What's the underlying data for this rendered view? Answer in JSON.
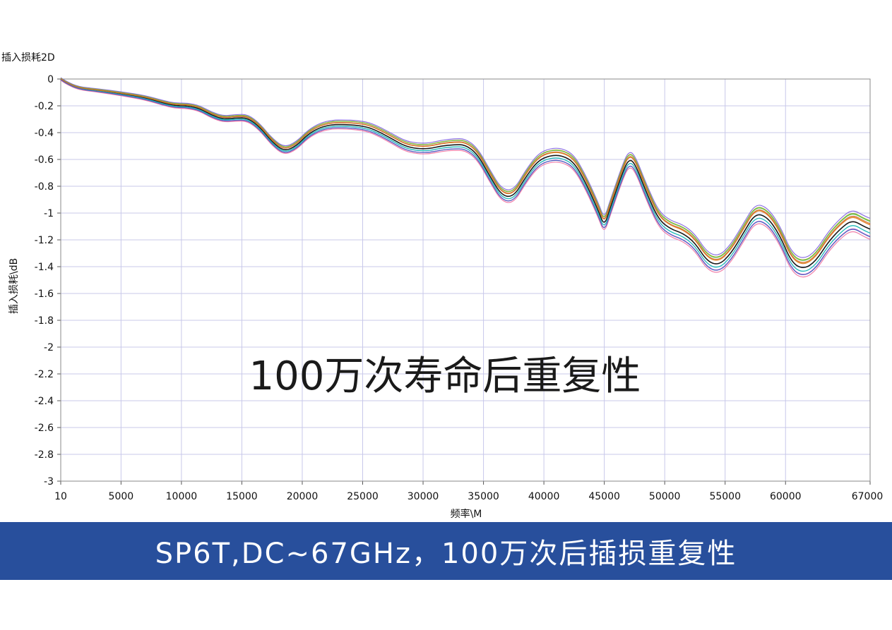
{
  "banner": {
    "text": "SP6T,DC~67GHz，100万次后插损重复性",
    "bg_color": "#284f9c"
  },
  "chart_data": {
    "type": "line",
    "title": "插入损耗2D",
    "overlay_text": "100万次寿命后重复性",
    "xlabel": "频率\\M",
    "ylabel": "插入损耗\\dB",
    "xlim": [
      10,
      67000
    ],
    "ylim": [
      -3,
      0
    ],
    "x_ticks": [
      10,
      5000,
      10000,
      15000,
      20000,
      25000,
      30000,
      35000,
      40000,
      45000,
      50000,
      55000,
      60000,
      67000
    ],
    "y_ticks": [
      0,
      -0.2,
      -0.4,
      -0.6,
      -0.8,
      -1,
      -1.2,
      -1.4,
      -1.6,
      -1.8,
      -2,
      -2.2,
      -2.4,
      -2.6,
      -2.8,
      -3
    ],
    "y_tick_labels": [
      "0",
      "-0.2",
      "-0.4",
      "-0.6",
      "-0.8",
      "-1",
      "-1.2",
      "-1.4",
      "-1.6",
      "-1.8",
      "-2",
      "-2.2",
      "-2.4",
      "-2.6",
      "-2.8",
      "-3"
    ],
    "grid": true,
    "legend": "none",
    "series_colors": [
      "#000000",
      "#e0403a",
      "#3aa0e0",
      "#40c040",
      "#c040c0",
      "#e0a020",
      "#20c0b0",
      "#8060e0",
      "#f070a0",
      "#90b030",
      "#4060c0",
      "#d06030"
    ],
    "series_offsets_db": [
      0,
      0.012,
      -0.01,
      0.02,
      -0.018,
      0.008,
      -0.005,
      0.025,
      -0.022,
      0.015,
      -0.012,
      0.004
    ],
    "series_spread_growth_db": 0.035,
    "typical_curve": {
      "x": [
        10,
        500,
        1500,
        3000,
        5000,
        7000,
        8500,
        9500,
        10500,
        11500,
        12500,
        13500,
        14500,
        15500,
        16500,
        17500,
        18500,
        19500,
        20500,
        21500,
        22500,
        23500,
        24500,
        25500,
        26500,
        27500,
        28500,
        29500,
        30500,
        31500,
        32500,
        33500,
        34500,
        35500,
        36500,
        37500,
        38500,
        39500,
        40500,
        41500,
        42500,
        43500,
        44500,
        45000,
        45500,
        46500,
        47000,
        47500,
        48500,
        49500,
        50500,
        51500,
        52500,
        53500,
        54500,
        55500,
        56500,
        57500,
        58500,
        59500,
        60500,
        61500,
        62500,
        63500,
        64500,
        65500,
        66500,
        67000
      ],
      "y": [
        0,
        -0.03,
        -0.07,
        -0.085,
        -0.11,
        -0.14,
        -0.18,
        -0.2,
        -0.2,
        -0.22,
        -0.27,
        -0.3,
        -0.29,
        -0.29,
        -0.36,
        -0.47,
        -0.54,
        -0.5,
        -0.41,
        -0.36,
        -0.34,
        -0.34,
        -0.345,
        -0.36,
        -0.4,
        -0.45,
        -0.5,
        -0.52,
        -0.52,
        -0.5,
        -0.49,
        -0.49,
        -0.56,
        -0.72,
        -0.87,
        -0.88,
        -0.73,
        -0.61,
        -0.57,
        -0.57,
        -0.62,
        -0.78,
        -0.98,
        -1.1,
        -0.96,
        -0.7,
        -0.6,
        -0.62,
        -0.85,
        -1.05,
        -1.12,
        -1.15,
        -1.22,
        -1.36,
        -1.39,
        -1.3,
        -1.15,
        -1.0,
        -1.03,
        -1.16,
        -1.37,
        -1.42,
        -1.36,
        -1.22,
        -1.12,
        -1.05,
        -1.1,
        -1.12
      ]
    }
  }
}
